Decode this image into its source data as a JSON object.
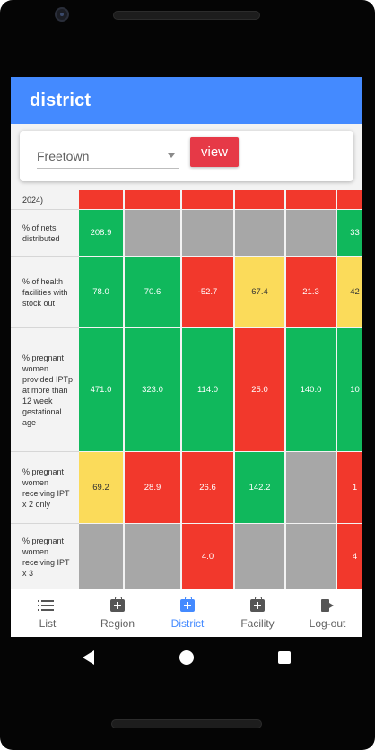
{
  "colors": {
    "appbar": "#448aff",
    "view_button": "#e63947",
    "green": "#10b85c",
    "red": "#f2382c",
    "yellow": "#fbdb5a",
    "grey": "#a7a7a7"
  },
  "header": {
    "title": "district"
  },
  "filter": {
    "selected": "Freetown",
    "view_label": "view"
  },
  "table": {
    "rows": [
      {
        "label": "2024)",
        "cells": [
          {
            "v": "",
            "c": "red"
          },
          {
            "v": "",
            "c": "red"
          },
          {
            "v": "",
            "c": "red"
          },
          {
            "v": "",
            "c": "red"
          },
          {
            "v": "",
            "c": "red"
          },
          {
            "v": "",
            "c": "red"
          }
        ]
      },
      {
        "label": "% of nets distributed",
        "cells": [
          {
            "v": "208.9",
            "c": "green"
          },
          {
            "v": "",
            "c": "grey"
          },
          {
            "v": "",
            "c": "grey"
          },
          {
            "v": "",
            "c": "grey"
          },
          {
            "v": "",
            "c": "grey"
          },
          {
            "v": "33",
            "c": "green"
          }
        ]
      },
      {
        "label": "% of health facilities with stock out",
        "cells": [
          {
            "v": "78.0",
            "c": "green"
          },
          {
            "v": "70.6",
            "c": "green"
          },
          {
            "v": "-52.7",
            "c": "red"
          },
          {
            "v": "67.4",
            "c": "yellow"
          },
          {
            "v": "21.3",
            "c": "red"
          },
          {
            "v": "42",
            "c": "yellow"
          }
        ]
      },
      {
        "label": "% pregnant women provided IPTp at more than 12 week gestational age",
        "cells": [
          {
            "v": "471.0",
            "c": "green"
          },
          {
            "v": "323.0",
            "c": "green"
          },
          {
            "v": "114.0",
            "c": "green"
          },
          {
            "v": "25.0",
            "c": "red"
          },
          {
            "v": "140.0",
            "c": "green"
          },
          {
            "v": "10",
            "c": "green"
          }
        ]
      },
      {
        "label": "% pregnant women receiving IPT x 2 only",
        "cells": [
          {
            "v": "69.2",
            "c": "yellow"
          },
          {
            "v": "28.9",
            "c": "red"
          },
          {
            "v": "26.6",
            "c": "red"
          },
          {
            "v": "142.2",
            "c": "green"
          },
          {
            "v": "",
            "c": "grey"
          },
          {
            "v": "1",
            "c": "red"
          }
        ]
      },
      {
        "label": "% pregnant women receiving IPT x 3",
        "cells": [
          {
            "v": "",
            "c": "grey"
          },
          {
            "v": "",
            "c": "grey"
          },
          {
            "v": "4.0",
            "c": "red"
          },
          {
            "v": "",
            "c": "grey"
          },
          {
            "v": "",
            "c": "grey"
          },
          {
            "v": "4",
            "c": "red"
          }
        ]
      }
    ]
  },
  "bottom_nav": {
    "items": [
      {
        "label": "List",
        "icon": "list-icon",
        "active": false
      },
      {
        "label": "Region",
        "icon": "medkit-icon",
        "active": false
      },
      {
        "label": "District",
        "icon": "medkit-icon",
        "active": true
      },
      {
        "label": "Facility",
        "icon": "medkit-icon",
        "active": false
      },
      {
        "label": "Log-out",
        "icon": "logout-icon",
        "active": false
      }
    ]
  }
}
